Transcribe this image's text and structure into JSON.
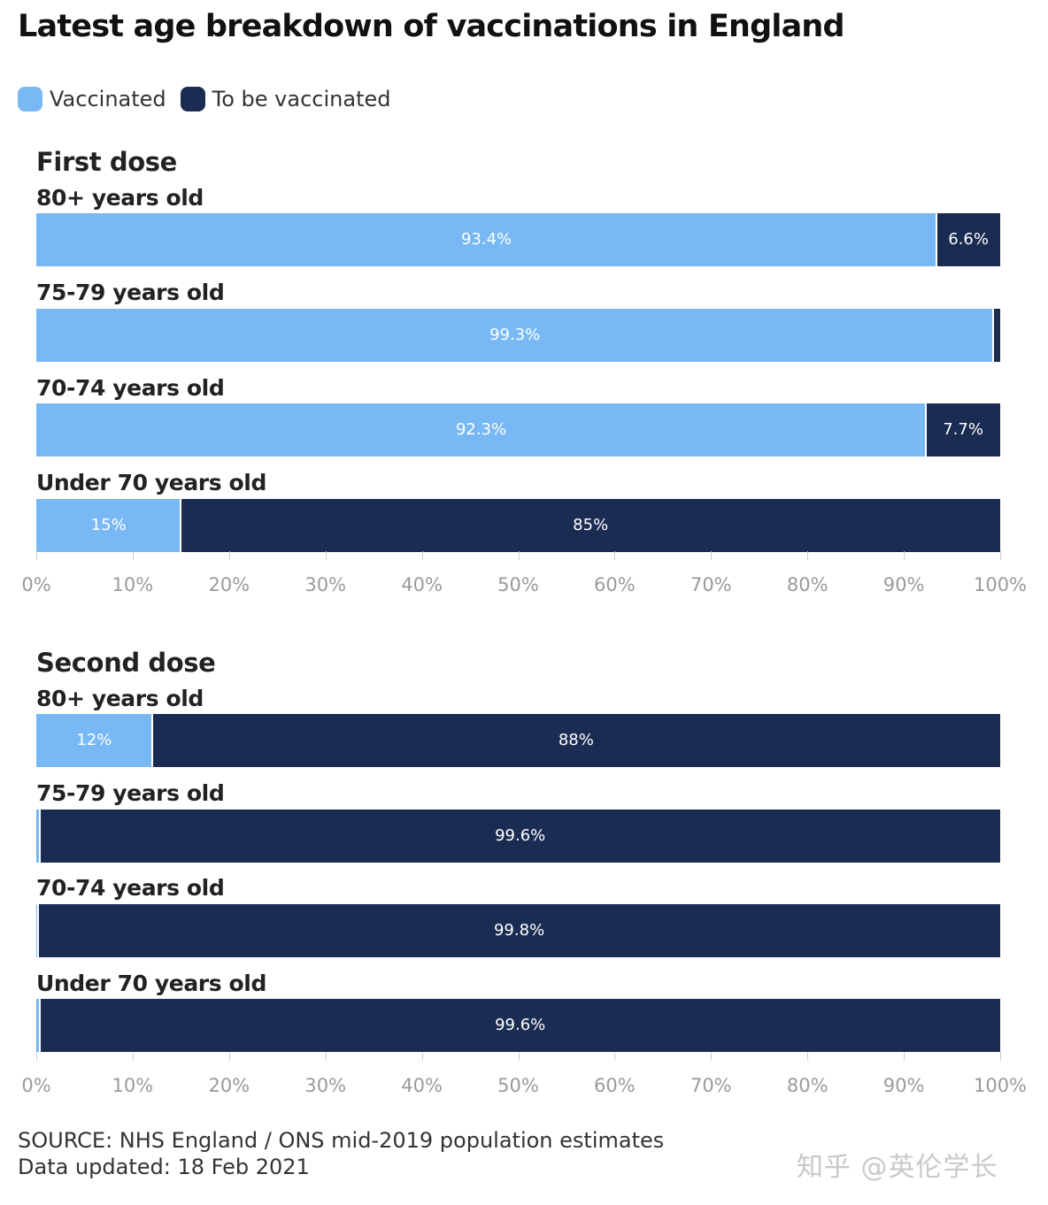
{
  "title": "Latest age breakdown of vaccinations in England",
  "legend": [
    {
      "label": "Vaccinated",
      "color": "#78b9f5"
    },
    {
      "label": "To be vaccinated",
      "color": "#1b2c52"
    }
  ],
  "chart_data": [
    {
      "type": "bar",
      "orientation": "horizontal",
      "stacked": true,
      "title": "First dose",
      "categories": [
        "80+ years old",
        "75-79 years old",
        "70-74 years old",
        "Under 70 years old"
      ],
      "series": [
        {
          "name": "Vaccinated",
          "color": "#78b9f5",
          "values": [
            93.4,
            99.3,
            92.3,
            15
          ],
          "labels": [
            "93.4%",
            "99.3%",
            "92.3%",
            "15%"
          ]
        },
        {
          "name": "To be vaccinated",
          "color": "#1b2c52",
          "values": [
            6.6,
            0.7,
            7.7,
            85
          ],
          "labels": [
            "6.6%",
            "",
            "7.7%",
            "85%"
          ]
        }
      ],
      "xlim": [
        0,
        100
      ],
      "xticks": [
        "0%",
        "10%",
        "20%",
        "30%",
        "40%",
        "50%",
        "60%",
        "70%",
        "80%",
        "90%",
        "100%"
      ]
    },
    {
      "type": "bar",
      "orientation": "horizontal",
      "stacked": true,
      "title": "Second dose",
      "categories": [
        "80+ years old",
        "75-79 years old",
        "70-74 years old",
        "Under 70 years old"
      ],
      "series": [
        {
          "name": "Vaccinated",
          "color": "#78b9f5",
          "values": [
            12,
            0.4,
            0.2,
            0.4
          ],
          "labels": [
            "12%",
            "",
            "",
            ""
          ]
        },
        {
          "name": "To be vaccinated",
          "color": "#1b2c52",
          "values": [
            88,
            99.6,
            99.8,
            99.6
          ],
          "labels": [
            "88%",
            "99.6%",
            "99.8%",
            "99.6%"
          ]
        }
      ],
      "xlim": [
        0,
        100
      ],
      "xticks": [
        "0%",
        "10%",
        "20%",
        "30%",
        "40%",
        "50%",
        "60%",
        "70%",
        "80%",
        "90%",
        "100%"
      ]
    }
  ],
  "footer": {
    "source": "SOURCE: NHS England / ONS mid-2019 population estimates",
    "updated": "Data updated: 18 Feb 2021"
  },
  "watermark": "知乎 @英伦学长"
}
